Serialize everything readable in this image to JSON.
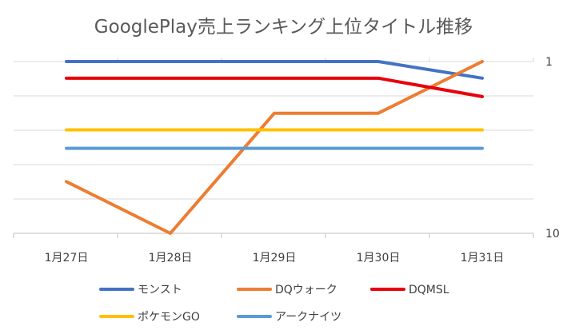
{
  "chart_data": {
    "type": "line",
    "title": "GooglePlay売上ランキング上位タイトル推移",
    "categories": [
      "1月27日",
      "1月28日",
      "1月29日",
      "1月30日",
      "1月31日"
    ],
    "yaxis": {
      "scale": "log",
      "reversed": true,
      "range": [
        1,
        10
      ],
      "ticks": [
        1,
        10
      ],
      "position": "right"
    },
    "grid": true,
    "legend_position": "bottom",
    "series": [
      {
        "name": "モンスト",
        "color": "#4472C4",
        "values": [
          1,
          1,
          1,
          1,
          1.25
        ]
      },
      {
        "name": "DQウォーク",
        "color": "#ED7D31",
        "values": [
          5,
          10,
          2,
          2,
          1
        ]
      },
      {
        "name": "DQMSL",
        "color": "#E8000B",
        "values": [
          1.25,
          1.25,
          1.25,
          1.25,
          1.6
        ]
      },
      {
        "name": "ポケモンGO",
        "color": "#FFC000",
        "values": [
          2.5,
          2.5,
          2.5,
          2.5,
          2.5
        ]
      },
      {
        "name": "アークナイツ",
        "color": "#5B9BD5",
        "values": [
          3.2,
          3.2,
          3.2,
          3.2,
          3.2
        ]
      }
    ]
  }
}
